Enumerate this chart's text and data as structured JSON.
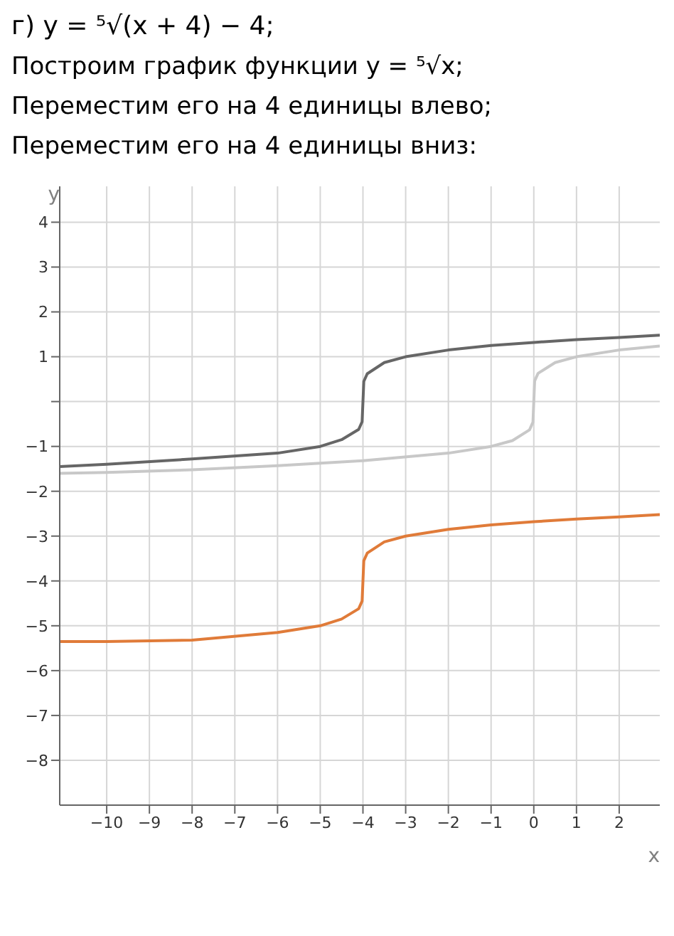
{
  "chart_data": {
    "type": "line",
    "title": "г) y = ⁵√(x + 4) − 4;",
    "annotations": [
      "Построим график функции y = ⁵√x;",
      "Переместим его на 4 единицы влево;",
      "Переместим его на 4 единицы вниз:"
    ],
    "xlabel": "x",
    "ylabel": "y",
    "series": [
      {
        "color": "#666666",
        "x": [
          -11.1,
          -10,
          -8,
          -6,
          -5,
          -4.5,
          -4.1,
          -4.02,
          -4,
          -3.98,
          -3.9,
          -3.5,
          -3,
          -2,
          -1,
          0,
          1,
          2,
          2.95
        ],
        "values": [
          -1.45,
          -1.4,
          -1.28,
          -1.15,
          -1.0,
          -0.85,
          -0.62,
          -0.45,
          0,
          0.45,
          0.62,
          0.87,
          1.0,
          1.15,
          1.25,
          1.32,
          1.38,
          1.43,
          1.48
        ]
      },
      {
        "color": "#c8c8c8",
        "x": [
          -11.1,
          -10,
          -8,
          -6,
          -4,
          -2,
          -1,
          -0.5,
          -0.1,
          -0.02,
          0,
          0.02,
          0.1,
          0.5,
          1,
          2,
          2.95
        ],
        "values": [
          -1.6,
          -1.58,
          -1.52,
          -1.43,
          -1.32,
          -1.15,
          -1.0,
          -0.87,
          -0.63,
          -0.46,
          0,
          0.46,
          0.63,
          0.87,
          1.0,
          1.15,
          1.24
        ]
      },
      {
        "color": "#e07b39",
        "x": [
          -11.1,
          -10,
          -8,
          -6,
          -5,
          -4.5,
          -4.1,
          -4.02,
          -4,
          -3.98,
          -3.9,
          -3.5,
          -3,
          -2,
          -1,
          0,
          1,
          2,
          2.95
        ],
        "values": [
          -5.35,
          -5.35,
          -5.32,
          -5.15,
          -5.0,
          -4.85,
          -4.62,
          -4.45,
          -4.0,
          -3.55,
          -3.38,
          -3.13,
          -3.0,
          -2.85,
          -2.75,
          -2.68,
          -2.62,
          -2.57,
          -2.52
        ]
      }
    ],
    "xlim": [
      -11.1,
      2.95
    ],
    "xticks": [
      -10,
      -9,
      -8,
      -7,
      -6,
      -5,
      -4,
      -3,
      -2,
      -1,
      0,
      1,
      2
    ],
    "ylim": [
      -9,
      4.8
    ],
    "yticks": [
      -8,
      -7,
      -6,
      -5,
      -4,
      -3,
      -2,
      -1,
      {
        "value": 0,
        "label": null
      },
      1,
      2,
      3,
      4
    ],
    "grid": true,
    "marker": "none",
    "line_style": "solid"
  }
}
